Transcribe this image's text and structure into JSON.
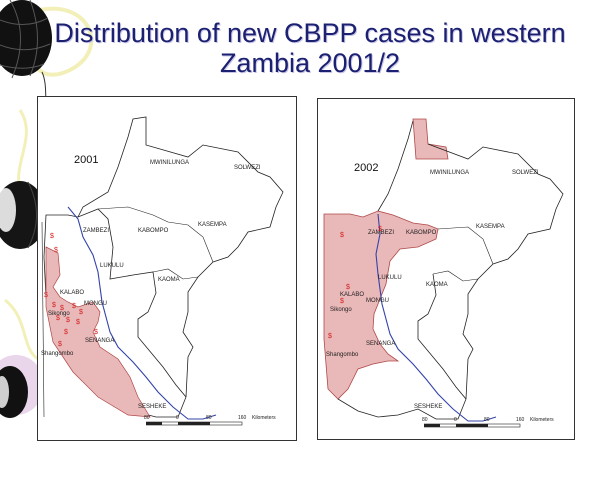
{
  "title": {
    "line1": "Distribution of new CBPP cases in western",
    "line2": "Zambia 2001/2"
  },
  "colors": {
    "title": "#1b2070",
    "affected_fill": "#e9b8b8",
    "affected_stroke": "#b04848",
    "river": "#3344aa",
    "case_symbol": "#d42020"
  },
  "maps": [
    {
      "year": "2001",
      "places": {
        "mwinilunga": "MWINILUNGA",
        "solwezi": "SOLWEZI",
        "zambezi": "ZAMBEZI",
        "kabompo": "KABOMPO",
        "kasempa": "KASEMPA",
        "lukulu": "LUKULU",
        "kaoma": "KAOMA",
        "kalabo": "KALABO",
        "mongu": "MONGU",
        "sikongo": "Sikongo",
        "senanga": "SENANGA",
        "shangombo": "Shangombo",
        "sesheke": "SESHEKE"
      },
      "scale": {
        "s0": "80",
        "s1": "0",
        "s2": "80",
        "s3": "160",
        "unit": "Kilometers"
      }
    },
    {
      "year": "2002",
      "places": {
        "mwinilunga": "MWINILUNGA",
        "solwezi": "SOLWEZI",
        "zambezi": "ZAMBEZI",
        "kabompo": "KABOMPO",
        "kasempa": "KASEMPA",
        "lukulu": "LUKULU",
        "kaoma": "KAOMA",
        "kalabo": "KALABO",
        "mongu": "MONGU",
        "sikongo": "Sikongo",
        "senanga": "SENANGA",
        "shangombo": "Shangombo",
        "sesheke": "SESHEKE"
      },
      "scale": {
        "s0": "80",
        "s1": "0",
        "s2": "80",
        "s3": "160",
        "unit": "Kilometers"
      }
    }
  ],
  "case_symbol": "$"
}
